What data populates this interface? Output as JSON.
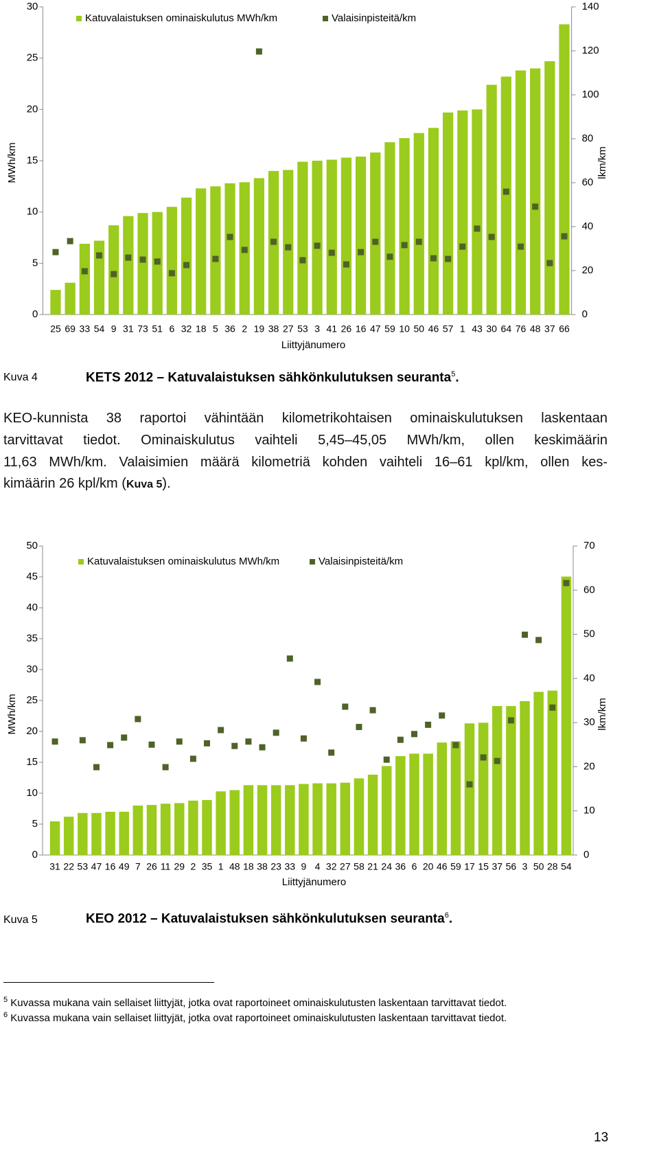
{
  "chart_data": [
    {
      "type": "bar",
      "xlabel": "Liittyjänumero",
      "ylabel": "MWh/km",
      "y2label": "lkm/km",
      "categories": [
        "25",
        "69",
        "33",
        "54",
        "9",
        "31",
        "73",
        "51",
        "6",
        "32",
        "18",
        "5",
        "36",
        "2",
        "19",
        "38",
        "27",
        "53",
        "3",
        "41",
        "26",
        "16",
        "47",
        "59",
        "10",
        "50",
        "46",
        "57",
        "1",
        "43",
        "30",
        "64",
        "76",
        "48",
        "37",
        "66"
      ],
      "series": [
        {
          "name": "Katuvalaistuksen ominaiskulutus MWh/km",
          "color": "#9bcb1c",
          "type": "bar",
          "values": [
            2.4,
            3.1,
            6.9,
            7.2,
            8.7,
            9.6,
            9.9,
            10.0,
            10.5,
            11.4,
            12.3,
            12.5,
            12.8,
            12.9,
            13.3,
            14.0,
            14.1,
            14.9,
            15.0,
            15.1,
            15.3,
            15.4,
            15.8,
            16.8,
            17.2,
            17.7,
            18.2,
            19.7,
            19.9,
            20.0,
            22.4,
            23.2,
            23.8,
            24.0,
            24.7,
            28.3
          ]
        },
        {
          "name": "Valaisinpisteitä/km",
          "color": "#4f6228",
          "type": "scatter",
          "axis": "y2",
          "values": [
            28.4,
            33.4,
            19.7,
            26.9,
            18.4,
            25.9,
            25.0,
            24.1,
            18.8,
            22.5,
            null,
            25.3,
            35.3,
            29.4,
            119.7,
            33.1,
            30.6,
            24.7,
            31.3,
            28.1,
            22.8,
            28.4,
            33.1,
            26.3,
            31.6,
            33.1,
            25.6,
            25.3,
            30.9,
            39.1,
            35.3,
            55.9,
            30.9,
            49.1,
            23.4,
            35.6
          ]
        }
      ],
      "ylim": [
        0,
        30
      ],
      "yticks": [
        0,
        5,
        10,
        15,
        20,
        25,
        30
      ],
      "y2lim": [
        0,
        140
      ],
      "y2ticks": [
        0,
        20,
        40,
        60,
        80,
        100,
        120,
        140
      ],
      "grid": false,
      "legend": "top"
    },
    {
      "type": "bar",
      "xlabel": "Liittyjänumero",
      "ylabel": "MWh/km",
      "y2label": "lkm/km",
      "categories": [
        "31",
        "22",
        "53",
        "47",
        "16",
        "49",
        "7",
        "26",
        "11",
        "29",
        "2",
        "35",
        "1",
        "48",
        "18",
        "38",
        "23",
        "33",
        "9",
        "4",
        "32",
        "27",
        "58",
        "21",
        "24",
        "36",
        "6",
        "20",
        "46",
        "59",
        "17",
        "15",
        "37",
        "56",
        "3",
        "50",
        "28",
        "54"
      ],
      "series": [
        {
          "name": "Katuvalaistuksen ominaiskulutus MWh/km",
          "color": "#9bcb1c",
          "type": "bar",
          "values": [
            5.45,
            6.2,
            6.8,
            6.8,
            7.0,
            7.0,
            8.0,
            8.1,
            8.3,
            8.4,
            8.8,
            8.9,
            10.3,
            10.5,
            11.3,
            11.3,
            11.3,
            11.3,
            11.5,
            11.6,
            11.6,
            11.7,
            12.4,
            13.0,
            14.4,
            16.0,
            16.4,
            16.4,
            18.2,
            18.4,
            21.3,
            21.4,
            24.1,
            24.1,
            24.9,
            26.4,
            26.6,
            45.05
          ]
        },
        {
          "name": "Valaisinpisteitä/km",
          "color": "#4f6228",
          "type": "scatter",
          "axis": "y2",
          "values": [
            25.7,
            null,
            26.0,
            19.9,
            24.9,
            26.6,
            30.8,
            25.0,
            19.9,
            25.7,
            21.8,
            25.3,
            28.3,
            24.7,
            25.7,
            24.4,
            27.7,
            44.5,
            26.4,
            39.2,
            23.2,
            33.6,
            29.0,
            32.8,
            21.6,
            26.1,
            27.4,
            29.5,
            31.6,
            24.9,
            16.0,
            22.1,
            21.3,
            30.5,
            49.9,
            48.7,
            33.4,
            61.6
          ]
        }
      ],
      "ylim": [
        0,
        50
      ],
      "yticks": [
        0,
        5,
        10,
        15,
        20,
        25,
        30,
        35,
        40,
        45,
        50
      ],
      "y2lim": [
        0,
        70
      ],
      "y2ticks": [
        0,
        10,
        20,
        30,
        40,
        50,
        60,
        70
      ],
      "grid": false,
      "legend": "top"
    }
  ],
  "document": {
    "caption1": {
      "label": "Kuva 4",
      "title": "KETS 2012 – Katuvalaistuksen sähkönkulutuksen seuranta",
      "ref": "5",
      "end": "."
    },
    "paragraph": {
      "lines": [
        "KEO-kunnista 38 raportoi vähintään kilometrikohtaisen ominaiskulutuksen laskentaan",
        "tarvittavat tiedot. Ominaiskulutus vaihteli 5,45–45,05 MWh/km, ollen keskimäärin",
        "11,63 MWh/km. Valaisimien määrä kilometriä kohden vaihteli 16–61 kpl/km, ollen kes-"
      ],
      "last": {
        "before": "kimäärin 26 kpl/km (",
        "ref": "Kuva 5",
        "after": ")."
      }
    },
    "caption2": {
      "label": "Kuva 5",
      "title": "KEO 2012 – Katuvalaistuksen sähkönkulutuksen seuranta",
      "ref": "6",
      "end": "."
    },
    "footnotes": [
      {
        "mark": "5",
        "text": "Kuvassa mukana vain sellaiset liittyjät, jotka ovat raportoineet ominaiskulutusten laskentaan tarvittavat tiedot."
      },
      {
        "mark": "6",
        "text": "Kuvassa mukana vain sellaiset liittyjät, jotka ovat raportoineet ominaiskulutusten laskentaan tarvittavat tiedot."
      }
    ],
    "page_number": "13"
  }
}
